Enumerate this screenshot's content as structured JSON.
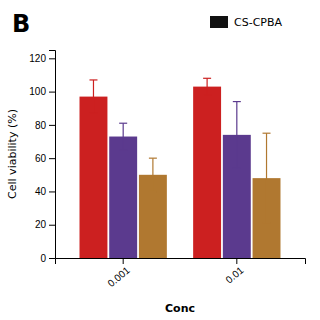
{
  "chart_data": {
    "type": "bar",
    "title": "B",
    "xlabel": "Conc",
    "ylabel": "Cell viability (%)",
    "categories": [
      "0.001",
      "0.01"
    ],
    "series": [
      {
        "color": "#cc2020",
        "values": [
          97,
          103
        ],
        "errors": [
          10,
          5
        ]
      },
      {
        "color": "#5b3a8e",
        "values": [
          73,
          74
        ],
        "errors": [
          8,
          20
        ]
      },
      {
        "color": "#b07830",
        "values": [
          50,
          48
        ],
        "errors": [
          10,
          27
        ]
      }
    ],
    "ylim": [
      0,
      125
    ],
    "yticks": [
      0,
      20,
      40,
      60,
      80,
      100,
      120
    ],
    "grid": false,
    "annotations": [
      {
        "text": "CS-CPBA",
        "color": "#111111"
      }
    ]
  }
}
